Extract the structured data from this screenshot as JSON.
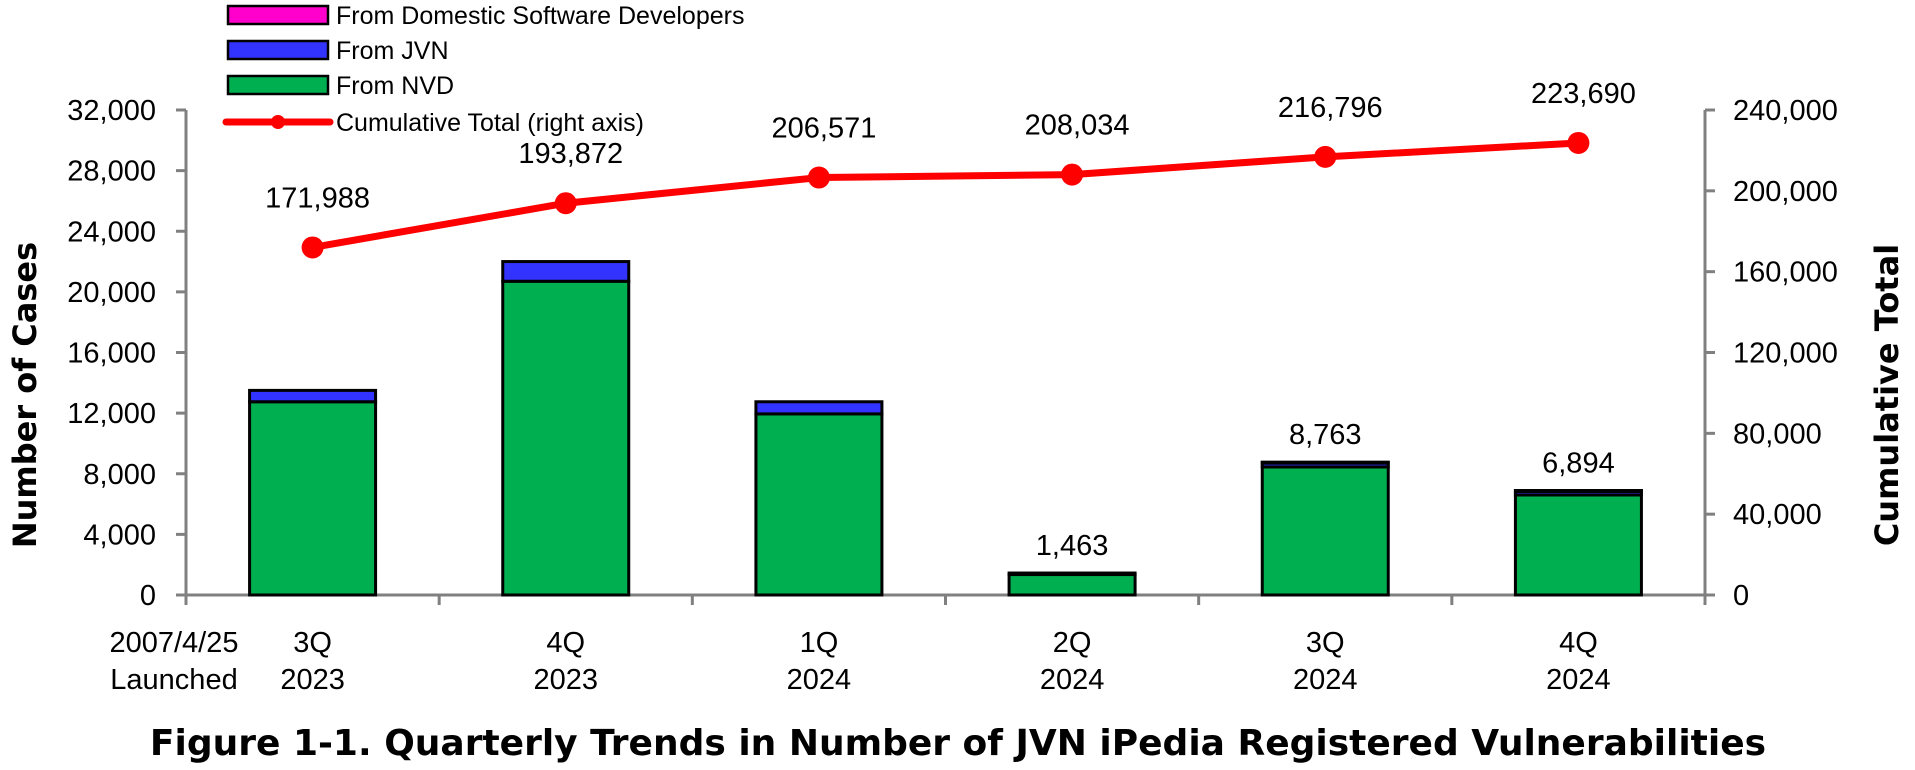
{
  "chart_data": {
    "type": "bar",
    "title": "Figure 1-1. Quarterly Trends in Number of JVN iPedia Registered Vulnerabilities",
    "ylabel": "Number of Cases",
    "y2label": "Cumulative Total",
    "ylim": [
      0,
      32000
    ],
    "y2lim": [
      0,
      240000
    ],
    "yticks": [
      "0",
      "4,000",
      "8,000",
      "12,000",
      "16,000",
      "20,000",
      "24,000",
      "28,000",
      "32,000"
    ],
    "y2ticks": [
      "0",
      "40,000",
      "80,000",
      "120,000",
      "160,000",
      "200,000",
      "240,000"
    ],
    "x_note": [
      "2007/4/25",
      "Launched"
    ],
    "categories": [
      [
        "3Q",
        "2023"
      ],
      [
        "4Q",
        "2023"
      ],
      [
        "1Q",
        "2024"
      ],
      [
        "2Q",
        "2024"
      ],
      [
        "3Q",
        "2024"
      ],
      [
        "4Q",
        "2024"
      ]
    ],
    "series": [
      {
        "name": "From NVD",
        "color": "#00b050",
        "values": [
          12750,
          20700,
          11950,
          1350,
          8450,
          6600
        ]
      },
      {
        "name": "From JVN",
        "color": "#3333ff",
        "values": [
          750,
          1300,
          800,
          100,
          300,
          280
        ]
      },
      {
        "name": "From Domestic Software Developers",
        "color": "#ff00cc",
        "values": [
          0,
          0,
          0,
          0,
          13,
          14
        ]
      }
    ],
    "bar_total_labels": [
      "",
      "",
      "",
      "1,463",
      "8,763",
      "6,894"
    ],
    "line": {
      "name": "Cumulative Total (right axis)",
      "color": "#ff0000",
      "values": [
        171988,
        193872,
        206571,
        208034,
        216796,
        223690
      ],
      "labels": [
        "171,988",
        "193,872",
        "206,571",
        "208,034",
        "216,796",
        "223,690"
      ]
    },
    "legend_position": "top-left",
    "grid": false
  }
}
